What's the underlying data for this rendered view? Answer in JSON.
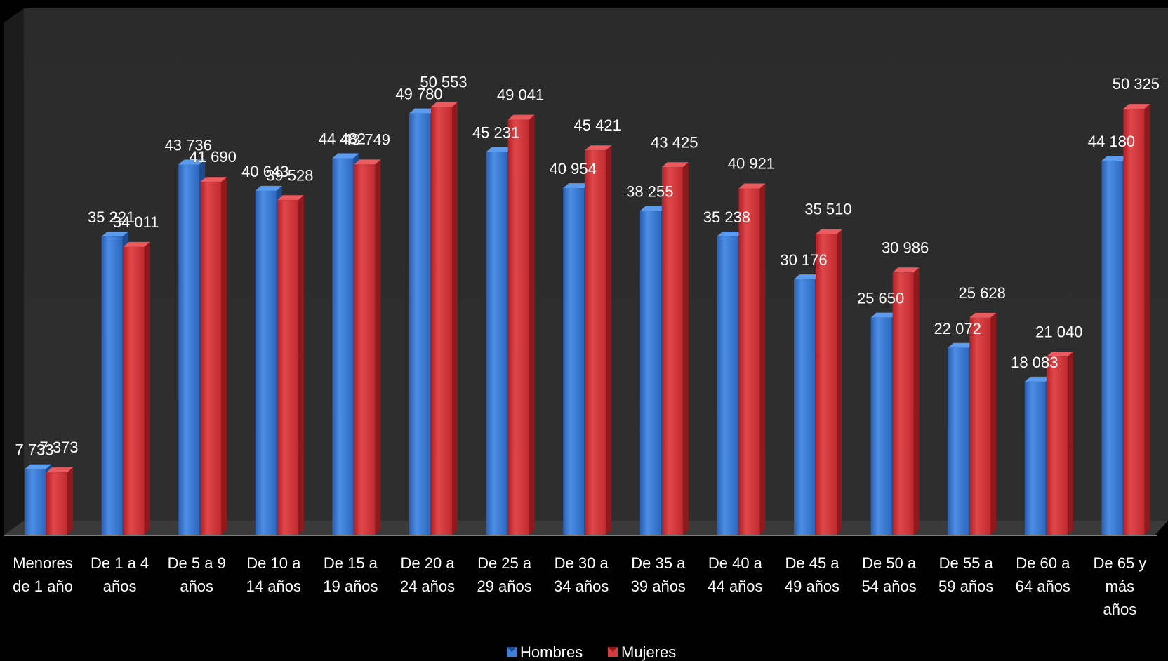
{
  "chart_data": {
    "type": "bar",
    "categories": [
      [
        "Menores",
        "de 1 año"
      ],
      [
        "De 1 a 4",
        "años"
      ],
      [
        "De 5 a 9",
        "años"
      ],
      [
        "De 10 a",
        "14 años"
      ],
      [
        "De 15 a",
        "19 años"
      ],
      [
        "De 20 a",
        "24 años"
      ],
      [
        "De 25 a",
        "29 años"
      ],
      [
        "De 30 a",
        "34 años"
      ],
      [
        "De 35 a",
        "39 años"
      ],
      [
        "De 40 a",
        "44 años"
      ],
      [
        "De 45 a",
        "49 años"
      ],
      [
        "De 50 a",
        "54 años"
      ],
      [
        "De 55 a",
        "59 años"
      ],
      [
        "De 60 a",
        "64 años"
      ],
      [
        "De 65 y",
        "más",
        "años"
      ]
    ],
    "series": [
      {
        "name": "Hombres",
        "color": "#2f6fc4",
        "values": [
          7733,
          35221,
          43736,
          40643,
          44482,
          49780,
          45231,
          40954,
          38255,
          35238,
          30176,
          25650,
          22072,
          18083,
          44180
        ],
        "labels": [
          "7 733",
          "35 221",
          "43 736",
          "40 643",
          "44 482",
          "49 780",
          "45 231",
          "40 954",
          "38 255",
          "35 238",
          "30 176",
          "25 650",
          "22 072",
          "18 083",
          "44 180"
        ]
      },
      {
        "name": "Mujeres",
        "color": "#c8282d",
        "values": [
          7373,
          34011,
          41690,
          39528,
          43749,
          50553,
          49041,
          45421,
          43425,
          40921,
          35510,
          30986,
          25628,
          21040,
          50325
        ],
        "labels": [
          "7 373",
          "34 011",
          "41 690",
          "39 528",
          "43 749",
          "50 553",
          "49 041",
          "45 421",
          "43 425",
          "40 921",
          "35 510",
          "30 986",
          "25 628",
          "21 040",
          "50 325"
        ]
      }
    ],
    "legend_position": "bottom",
    "grid": false,
    "three_d": true,
    "background_color": "#2a2a2a",
    "floor_color": "#3a3a3a"
  }
}
